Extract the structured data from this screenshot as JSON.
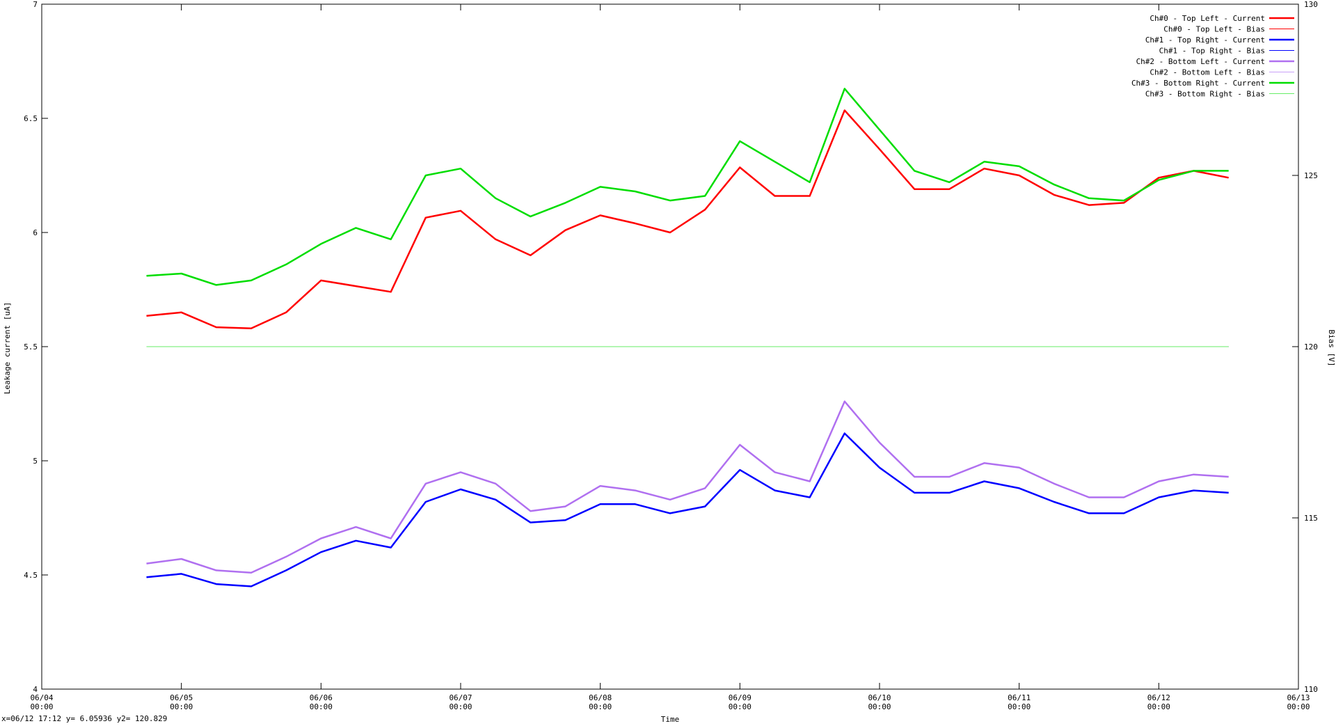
{
  "chart_data": {
    "type": "line",
    "xlabel": "Time",
    "ylabel": "Leakage current [uA]",
    "y2label": "Bias [V]",
    "status": "x=06/12 17:12 y= 6.05936 y2= 120.829",
    "legend": "top-right",
    "x": [
      "06/04 18:00",
      "06/05 00:00",
      "06/05 06:00",
      "06/05 12:00",
      "06/05 18:00",
      "06/06 00:00",
      "06/06 06:00",
      "06/06 12:00",
      "06/06 18:00",
      "06/07 00:00",
      "06/07 06:00",
      "06/07 12:00",
      "06/07 18:00",
      "06/08 00:00",
      "06/08 06:00",
      "06/08 12:00",
      "06/08 18:00",
      "06/09 00:00",
      "06/09 06:00",
      "06/09 12:00",
      "06/09 18:00",
      "06/10 00:00",
      "06/10 06:00",
      "06/10 12:00",
      "06/10 18:00",
      "06/11 00:00",
      "06/11 06:00",
      "06/11 12:00",
      "06/11 18:00",
      "06/12 00:00",
      "06/12 06:00",
      "06/12 12:00"
    ],
    "xlim": [
      "06/04 00:00",
      "06/13 00:00"
    ],
    "xticks": [
      {
        "value": "06/04 00:00",
        "label": "06/04\n00:00"
      },
      {
        "value": "06/05 00:00",
        "label": "06/05\n00:00"
      },
      {
        "value": "06/06 00:00",
        "label": "06/06\n00:00"
      },
      {
        "value": "06/07 00:00",
        "label": "06/07\n00:00"
      },
      {
        "value": "06/08 00:00",
        "label": "06/08\n00:00"
      },
      {
        "value": "06/09 00:00",
        "label": "06/09\n00:00"
      },
      {
        "value": "06/10 00:00",
        "label": "06/10\n00:00"
      },
      {
        "value": "06/11 00:00",
        "label": "06/11\n00:00"
      },
      {
        "value": "06/12 00:00",
        "label": "06/12\n00:00"
      },
      {
        "value": "06/13 00:00",
        "label": "06/13\n00:00"
      }
    ],
    "ylim": [
      4,
      7
    ],
    "yticks": [
      4,
      4.5,
      5,
      5.5,
      6,
      6.5,
      7
    ],
    "y2lim": [
      110,
      130
    ],
    "y2ticks": [
      110,
      115,
      120,
      125,
      130
    ],
    "series": [
      {
        "name": "Ch#0 - Top Left - Current",
        "color": "#ff0000",
        "width": 2.5,
        "values": [
          5.635,
          5.65,
          5.585,
          5.58,
          5.65,
          5.79,
          5.765,
          5.74,
          6.065,
          6.095,
          5.97,
          5.9,
          6.01,
          6.075,
          6.04,
          6.0,
          6.1,
          6.285,
          6.16,
          6.16,
          6.535,
          6.365,
          6.19,
          6.19,
          6.28,
          6.25,
          6.165,
          6.12,
          6.13,
          6.24,
          6.27,
          6.24
        ]
      },
      {
        "name": "Ch#0 - Top Left - Bias",
        "color": "#ff0000",
        "width": 1,
        "axis": "y2",
        "values": [
          120,
          120,
          120,
          120,
          120,
          120,
          120,
          120,
          120,
          120,
          120,
          120,
          120,
          120,
          120,
          120,
          120,
          120,
          120,
          120,
          120,
          120,
          120,
          120,
          120,
          120,
          120,
          120,
          120,
          120,
          120,
          120
        ]
      },
      {
        "name": "Ch#1 - Top Right - Current",
        "color": "#0000ff",
        "width": 2.5,
        "values": [
          4.49,
          4.505,
          4.46,
          4.45,
          4.52,
          4.6,
          4.65,
          4.62,
          4.82,
          4.875,
          4.83,
          4.73,
          4.74,
          4.81,
          4.81,
          4.77,
          4.8,
          4.96,
          4.87,
          4.84,
          5.12,
          4.97,
          4.86,
          4.86,
          4.91,
          4.88,
          4.82,
          4.77,
          4.77,
          4.84,
          4.87,
          4.86
        ]
      },
      {
        "name": "Ch#1 - Top Right - Bias",
        "color": "#0000ff",
        "width": 1,
        "axis": "y2",
        "values": [
          120,
          120,
          120,
          120,
          120,
          120,
          120,
          120,
          120,
          120,
          120,
          120,
          120,
          120,
          120,
          120,
          120,
          120,
          120,
          120,
          120,
          120,
          120,
          120,
          120,
          120,
          120,
          120,
          120,
          120,
          120,
          120
        ]
      },
      {
        "name": "Ch#2 - Bottom Left - Current",
        "color": "#b070f0",
        "width": 2.5,
        "values": [
          4.55,
          4.57,
          4.52,
          4.51,
          4.58,
          4.66,
          4.71,
          4.66,
          4.9,
          4.95,
          4.9,
          4.78,
          4.8,
          4.89,
          4.87,
          4.83,
          4.88,
          5.07,
          4.95,
          4.91,
          5.26,
          5.08,
          4.93,
          4.93,
          4.99,
          4.97,
          4.9,
          4.84,
          4.84,
          4.91,
          4.94,
          4.93
        ]
      },
      {
        "name": "Ch#2 - Bottom Left - Bias",
        "color": "#c8a0f8",
        "width": 1,
        "axis": "y2",
        "values": [
          120,
          120,
          120,
          120,
          120,
          120,
          120,
          120,
          120,
          120,
          120,
          120,
          120,
          120,
          120,
          120,
          120,
          120,
          120,
          120,
          120,
          120,
          120,
          120,
          120,
          120,
          120,
          120,
          120,
          120,
          120,
          120
        ]
      },
      {
        "name": "Ch#3 - Bottom Right - Current",
        "color": "#00dd00",
        "width": 2.5,
        "values": [
          5.81,
          5.82,
          5.77,
          5.79,
          5.86,
          5.95,
          6.02,
          5.97,
          6.25,
          6.28,
          6.15,
          6.07,
          6.13,
          6.2,
          6.18,
          6.14,
          6.16,
          6.4,
          6.31,
          6.22,
          6.63,
          6.45,
          6.27,
          6.22,
          6.31,
          6.29,
          6.21,
          6.15,
          6.14,
          6.23,
          6.27,
          6.27
        ]
      },
      {
        "name": "Ch#3 - Bottom Right - Bias",
        "color": "#66ee66",
        "width": 1,
        "axis": "y2",
        "values": [
          120,
          120,
          120,
          120,
          120,
          120,
          120,
          120,
          120,
          120,
          120,
          120,
          120,
          120,
          120,
          120,
          120,
          120,
          120,
          120,
          120,
          120,
          120,
          120,
          120,
          120,
          120,
          120,
          120,
          120,
          120,
          120
        ]
      }
    ]
  }
}
